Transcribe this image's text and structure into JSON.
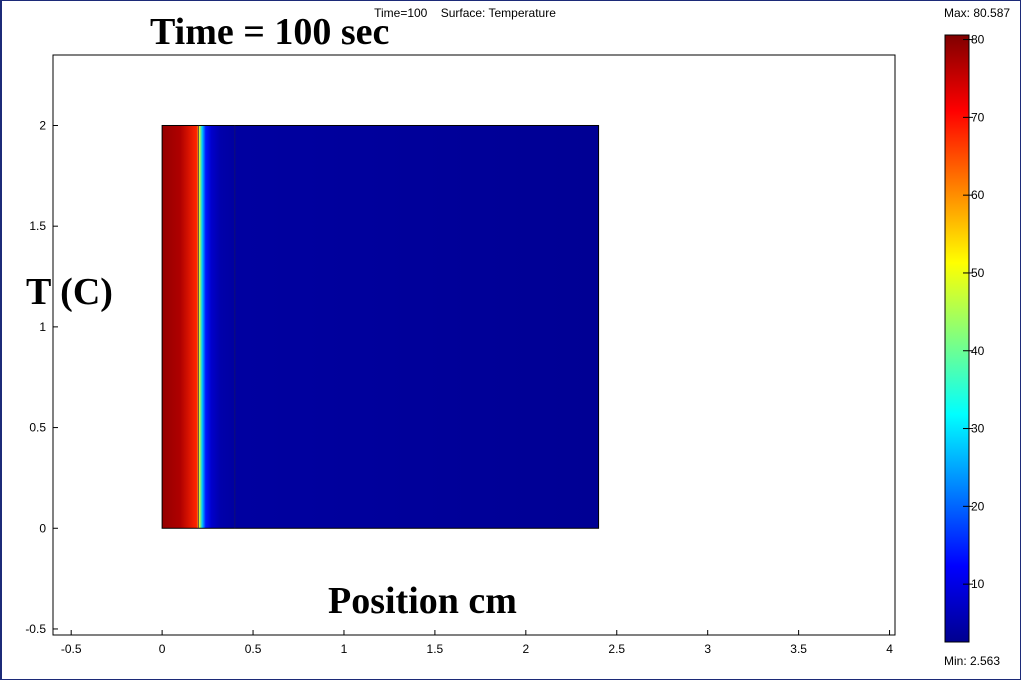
{
  "overlay": {
    "title": "Time = 100 sec",
    "ylabel": "T (C)",
    "xlabel": "Position cm"
  },
  "chart_data": {
    "type": "heatmap",
    "plot_title": "Time=100    Surface: Temperature",
    "xlim": [
      -0.6,
      4.03
    ],
    "ylim": [
      -0.53,
      2.35
    ],
    "x_ticks": [
      -0.5,
      0,
      0.5,
      1,
      1.5,
      2,
      2.5,
      3,
      3.5,
      4
    ],
    "y_ticks": [
      -0.5,
      0,
      0.5,
      1,
      1.5,
      2
    ],
    "domain": {
      "x": [
        0,
        2.4
      ],
      "y": [
        0,
        2
      ]
    },
    "interface_x": [
      0.2,
      0.4
    ],
    "temperature_profile": [
      {
        "x": 0.0,
        "T": 79
      },
      {
        "x": 0.1,
        "T": 77
      },
      {
        "x": 0.19,
        "T": 68
      },
      {
        "x": 0.205,
        "T": 48
      },
      {
        "x": 0.22,
        "T": 28
      },
      {
        "x": 0.24,
        "T": 14
      },
      {
        "x": 0.27,
        "T": 8
      },
      {
        "x": 0.32,
        "T": 5
      },
      {
        "x": 0.4,
        "T": 4
      },
      {
        "x": 2.4,
        "T": 3
      }
    ],
    "colorbar": {
      "max_label": "Max: 80.587",
      "min_label": "Min: 2.563",
      "max": 80.587,
      "min": 2.563,
      "ticks": [
        80,
        70,
        60,
        50,
        40,
        30,
        20,
        10
      ],
      "colors": [
        "#00008f",
        "#0000ff",
        "#0080ff",
        "#00ffff",
        "#80ff80",
        "#ffff00",
        "#ff8000",
        "#ff0000",
        "#800000"
      ]
    }
  }
}
